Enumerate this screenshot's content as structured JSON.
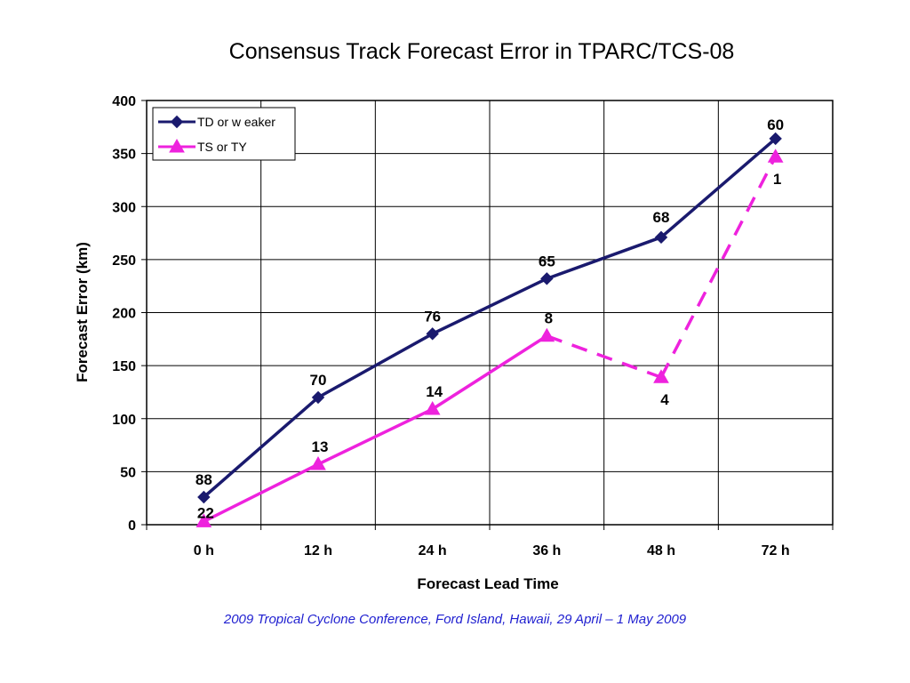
{
  "chart_data": {
    "type": "line",
    "title": "Consensus Track Forecast Error in TPARC/TCS-08",
    "xlabel": "Forecast Lead Time",
    "ylabel": "Forecast Error (km)",
    "categories": [
      "0 h",
      "12 h",
      "24 h",
      "36 h",
      "48 h",
      "72 h"
    ],
    "ylim": [
      0,
      400
    ],
    "yticks": [
      0,
      50,
      100,
      150,
      200,
      250,
      300,
      350,
      400
    ],
    "grid": true,
    "legend_position": "top-left",
    "series": [
      {
        "name": "TD or w eaker",
        "color": "#1a1a6e",
        "marker": "diamond",
        "values": [
          26,
          120,
          180,
          232,
          271,
          364
        ],
        "labels": [
          "88",
          "70",
          "76",
          "65",
          "68",
          "60"
        ],
        "dashed_from_index": null
      },
      {
        "name": "TS or TY",
        "color": "#ee22dd",
        "marker": "triangle",
        "values": [
          3,
          57,
          109,
          178,
          139,
          347
        ],
        "labels": [
          "22",
          "13",
          "14",
          "8",
          "4",
          "1"
        ],
        "dashed_from_index": 3
      }
    ]
  },
  "footer": "2009 Tropical Cyclone Conference, Ford Island, Hawaii, 29 April – 1 May 2009"
}
